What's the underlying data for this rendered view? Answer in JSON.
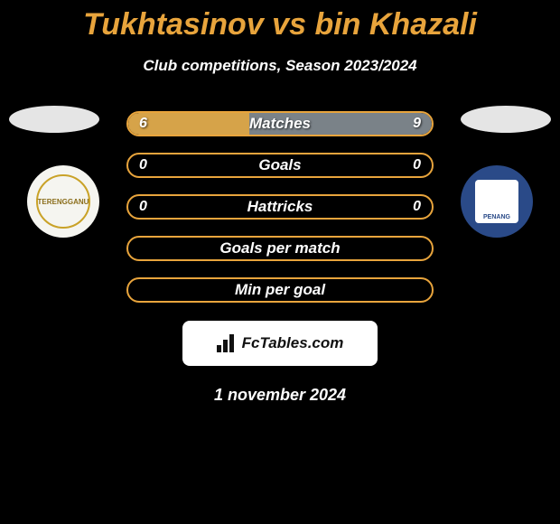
{
  "title": "Tukhtasinov vs bin Khazali",
  "subtitle": "Club competitions, Season 2023/2024",
  "date": "1 november 2024",
  "watermark_text": "FcTables.com",
  "colors": {
    "accent": "#e8a43c",
    "border": "#e8a43c",
    "fill_left": "#d6a349",
    "fill_right": "#7a8288",
    "background": "#000000"
  },
  "club_left": {
    "name": "TERENGGANU",
    "bg": "#f5f5f0",
    "ring": "#c9a227"
  },
  "club_right": {
    "name": "PENANG",
    "bg": "#2a4a88",
    "panel": "#ffffff"
  },
  "rows": [
    {
      "label": "Matches",
      "left_val": "6",
      "right_val": "9",
      "left_pct": 40,
      "right_pct": 60,
      "show_vals": true
    },
    {
      "label": "Goals",
      "left_val": "0",
      "right_val": "0",
      "left_pct": 0,
      "right_pct": 0,
      "show_vals": true
    },
    {
      "label": "Hattricks",
      "left_val": "0",
      "right_val": "0",
      "left_pct": 0,
      "right_pct": 0,
      "show_vals": true
    },
    {
      "label": "Goals per match",
      "left_val": "",
      "right_val": "",
      "left_pct": 0,
      "right_pct": 0,
      "show_vals": false
    },
    {
      "label": "Min per goal",
      "left_val": "",
      "right_val": "",
      "left_pct": 0,
      "right_pct": 0,
      "show_vals": false
    }
  ]
}
